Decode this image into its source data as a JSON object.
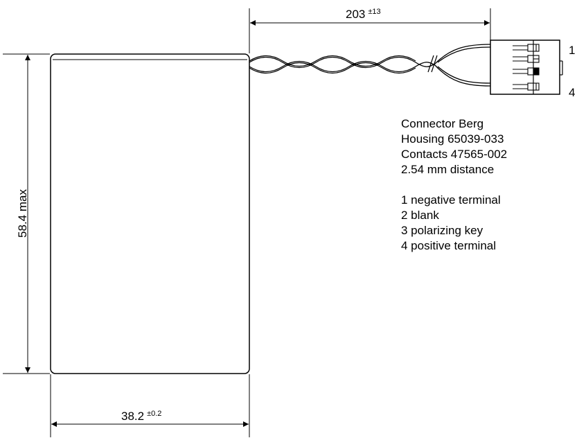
{
  "dimensions": {
    "cable_length": {
      "value": "203",
      "tolerance": "±13"
    },
    "width": {
      "value": "38.2",
      "tolerance": "±0.2"
    },
    "height": {
      "value": "58.4 max"
    }
  },
  "pin_numbers": {
    "top": "1",
    "bottom": "4"
  },
  "connector_info": [
    "Connector  Berg",
    "Housing   65039-033",
    "Contacts  47565-002",
    "2.54 mm distance"
  ],
  "pin_legend": [
    "1  negative terminal",
    "2  blank",
    "3  polarizing key",
    "4  positive terminal"
  ]
}
